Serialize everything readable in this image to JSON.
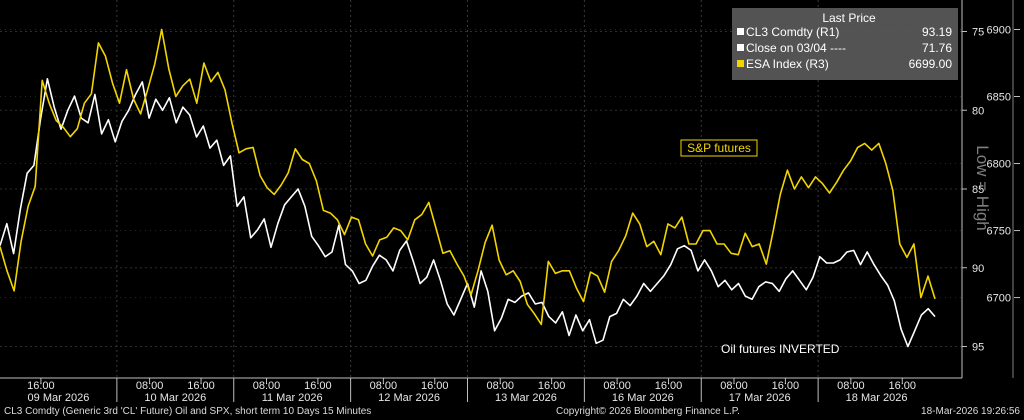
{
  "chart_data": {
    "type": "line",
    "x_ticks_time": [
      {
        "date": "09 Mar 2026",
        "times": [
          "16:00"
        ]
      },
      {
        "date": "10 Mar 2026",
        "times": [
          "08:00",
          "16:00"
        ]
      },
      {
        "date": "11 Mar 2026",
        "times": [
          "08:00",
          "16:00"
        ]
      },
      {
        "date": "12 Mar 2026",
        "times": [
          "08:00",
          "16:00"
        ]
      },
      {
        "date": "13 Mar 2026",
        "times": [
          "08:00",
          "16:00"
        ]
      },
      {
        "date": "16 Mar 2026",
        "times": [
          "08:00",
          "16:00"
        ]
      },
      {
        "date": "17 Mar 2026",
        "times": [
          "08:00",
          "16:00"
        ]
      },
      {
        "date": "18 Mar 2026",
        "times": [
          "08:00",
          "16:00"
        ]
      }
    ],
    "y_left": {
      "label": "Low = High",
      "ticks": [
        75,
        80,
        85,
        90,
        95
      ],
      "range": [
        73,
        97
      ],
      "inverted": true
    },
    "y_right": {
      "ticks": [
        6900,
        6850,
        6800,
        6750,
        6700
      ],
      "range": [
        6922,
        6640
      ]
    },
    "legend": {
      "title": "Last Price",
      "entries": [
        {
          "name": "CL3 Comdty  (R1)",
          "value": "93.19",
          "color": "#ffffff"
        },
        {
          "name": "Close on 03/04 ----",
          "value": "71.76",
          "color": "#ffffff"
        },
        {
          "name": "ESA Index  (R3)",
          "value": "6699.00",
          "color": "#f2d500"
        }
      ]
    },
    "annotations": {
      "sp": "S&P futures",
      "oil": "Oil futures INVERTED"
    },
    "series": [
      {
        "name": "CL3 Comdty",
        "color": "#ffffff",
        "values": [
          88.6,
          87.2,
          89.1,
          86.3,
          84.0,
          83.5,
          80.5,
          78.0,
          79.8,
          81.2,
          80.0,
          79.1,
          80.5,
          80.8,
          79.0,
          81.5,
          80.6,
          82.0,
          80.7,
          80.0,
          79.0,
          78.2,
          80.5,
          79.3,
          80.0,
          79.2,
          80.8,
          79.8,
          80.3,
          81.7,
          81.0,
          82.4,
          81.9,
          83.5,
          82.9,
          86.1,
          85.5,
          88.1,
          87.6,
          86.9,
          88.7,
          87.2,
          86.0,
          85.5,
          85.0,
          86.1,
          88.0,
          88.6,
          89.3,
          89.0,
          87.3,
          89.8,
          90.2,
          91.0,
          90.8,
          89.9,
          89.2,
          89.5,
          90.2,
          88.9,
          88.3,
          89.6,
          91.0,
          90.6,
          89.5,
          90.8,
          92.3,
          93.0,
          92.0,
          91.0,
          92.5,
          90.2,
          91.5,
          94.0,
          93.2,
          92.0,
          92.2,
          91.8,
          91.6,
          92.3,
          92.2,
          93.1,
          93.5,
          92.8,
          94.3,
          93.0,
          94.0,
          93.3,
          94.8,
          94.6,
          93.1,
          92.9,
          92.0,
          92.4,
          91.8,
          91.0,
          91.5,
          91.0,
          90.5,
          89.8,
          88.8,
          88.6,
          88.9,
          90.2,
          89.5,
          90.2,
          91.2,
          90.8,
          91.4,
          91.0,
          91.8,
          92.0,
          91.2,
          90.9,
          91.0,
          91.5,
          90.7,
          90.2,
          90.8,
          91.4,
          90.6,
          89.3,
          89.7,
          89.7,
          89.5,
          89.0,
          88.9,
          89.8,
          89.0,
          89.8,
          90.5,
          91.1,
          92.1,
          93.9,
          95.0,
          94.0,
          93.0,
          92.6,
          93.1
        ]
      },
      {
        "name": "ESA Index",
        "color": "#f2d500",
        "values": [
          6738,
          6720,
          6705,
          6742,
          6768,
          6783,
          6862,
          6845,
          6832,
          6827,
          6820,
          6826,
          6845,
          6852,
          6890,
          6880,
          6860,
          6845,
          6870,
          6848,
          6837,
          6855,
          6874,
          6900,
          6871,
          6850,
          6858,
          6863,
          6845,
          6875,
          6861,
          6868,
          6855,
          6830,
          6808,
          6811,
          6812,
          6791,
          6782,
          6777,
          6784,
          6793,
          6811,
          6803,
          6800,
          6787,
          6765,
          6763,
          6758,
          6747,
          6760,
          6758,
          6740,
          6731,
          6743,
          6745,
          6752,
          6750,
          6743,
          6758,
          6762,
          6771,
          6752,
          6733,
          6735,
          6725,
          6716,
          6702,
          6720,
          6741,
          6754,
          6728,
          6717,
          6720,
          6712,
          6695,
          6688,
          6680,
          6727,
          6718,
          6720,
          6720,
          6707,
          6697,
          6719,
          6716,
          6704,
          6727,
          6735,
          6746,
          6763,
          6755,
          6738,
          6742,
          6732,
          6755,
          6752,
          6760,
          6740,
          6740,
          6750,
          6750,
          6740,
          6740,
          6733,
          6732,
          6748,
          6738,
          6740,
          6725,
          6750,
          6777,
          6795,
          6781,
          6790,
          6782,
          6790,
          6785,
          6778,
          6786,
          6795,
          6802,
          6812,
          6815,
          6810,
          6815,
          6800,
          6780,
          6740,
          6730,
          6740,
          6700,
          6716,
          6699
        ]
      }
    ]
  },
  "footer": {
    "left": "CL3 Comdty (Generic 3rd 'CL' Future) Oil and SPX, short term 10 Days 15 Minutes",
    "center": "Copyright© 2026 Bloomberg Finance L.P.",
    "right": "18-Mar-2026 19:26:56"
  }
}
